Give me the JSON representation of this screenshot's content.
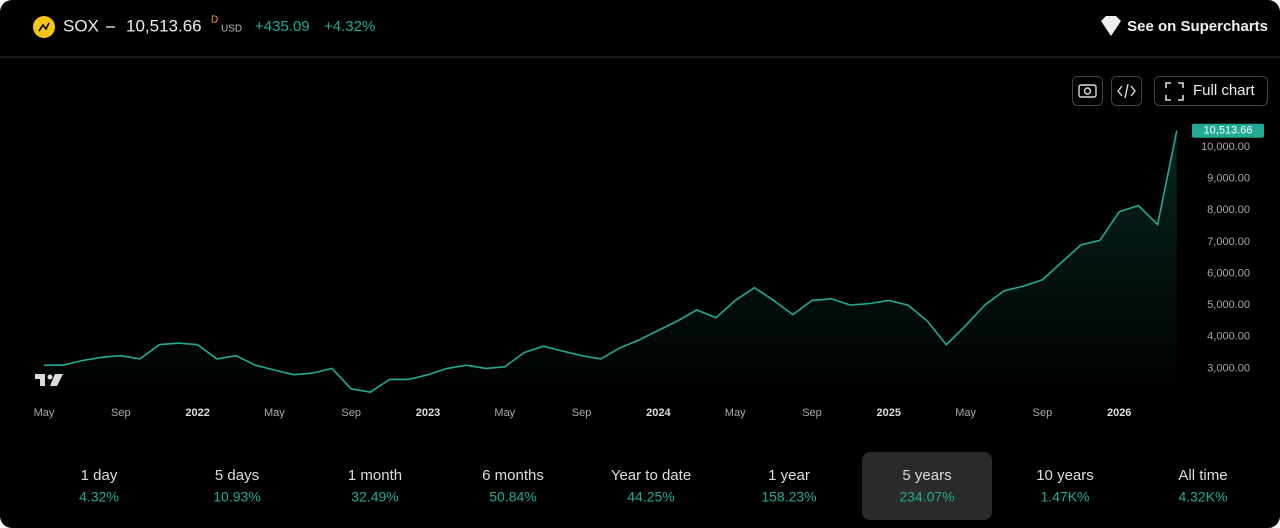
{
  "header": {
    "symbol": "SOX",
    "price": "10,513.66",
    "price_flag": "D",
    "currency": "USD",
    "change": "+435.09",
    "change_percent": "+4.32%",
    "link": "See on Supercharts"
  },
  "toolbar": {
    "full_chart": "Full chart"
  },
  "chart_data": {
    "type": "line",
    "categories": [
      "May",
      null,
      null,
      null,
      "Sep",
      null,
      null,
      null,
      "2022",
      null,
      null,
      null,
      "May",
      null,
      null,
      null,
      "Sep",
      null,
      null,
      null,
      "2023",
      null,
      null,
      null,
      "May",
      null,
      null,
      null,
      "Sep",
      null,
      null,
      null,
      "2024",
      null,
      null,
      null,
      "May",
      null,
      null,
      null,
      "Sep",
      null,
      null,
      null,
      "2025",
      null,
      null,
      null,
      "May",
      null,
      null,
      null,
      "Sep",
      null,
      null,
      null,
      "2026",
      null,
      null,
      null
    ],
    "series": [
      {
        "color": "#22ab94",
        "values": [
          3100,
          3100,
          3250,
          3350,
          3400,
          3300,
          3750,
          3800,
          3750,
          3300,
          3400,
          3100,
          2950,
          2800,
          2850,
          3000,
          2350,
          2250,
          2650,
          2650,
          2800,
          3000,
          3100,
          3000,
          3050,
          3500,
          3700,
          3550,
          3400,
          3300,
          3650,
          3900,
          4200,
          4500,
          4850,
          4600,
          5150,
          5550,
          5150,
          4700,
          5150,
          5200,
          5000,
          5050,
          5150,
          5000,
          4500,
          3750,
          4350,
          5000,
          5450,
          5600,
          5800,
          6350,
          6900,
          7050,
          7950,
          8150,
          7550,
          10513.66
        ],
        "value_labels": [
          null,
          null,
          null,
          null,
          null,
          null,
          null,
          null,
          null,
          null,
          null,
          null,
          null,
          null,
          null,
          null,
          null,
          null,
          null,
          null,
          null,
          null,
          null,
          null,
          null,
          null,
          null,
          null,
          null,
          null,
          null,
          null,
          null,
          null,
          null,
          null,
          null,
          null,
          null,
          null,
          null,
          null,
          null,
          null,
          null,
          null,
          null,
          null,
          null,
          null,
          null,
          null,
          null,
          null,
          null,
          null,
          null,
          null,
          null,
          "10,513.66"
        ]
      }
    ],
    "ylim": [
      2000,
      10600
    ],
    "yticks": [
      {
        "value": 3000,
        "label": "3,000.00"
      },
      {
        "value": 4000,
        "label": "4,000.00"
      },
      {
        "value": 5000,
        "label": "5,000.00"
      },
      {
        "value": 6000,
        "label": "6,000.00"
      },
      {
        "value": 7000,
        "label": "7,000.00"
      },
      {
        "value": 8000,
        "label": "8,000.00"
      },
      {
        "value": 9000,
        "label": "9,000.00"
      },
      {
        "value": 10000,
        "label": "10,000.00"
      }
    ],
    "grid": false
  },
  "periods": [
    {
      "label": "1 day",
      "change": "4.32%"
    },
    {
      "label": "5 days",
      "change": "10.93%"
    },
    {
      "label": "1 month",
      "change": "32.49%"
    },
    {
      "label": "6 months",
      "change": "50.84%"
    },
    {
      "label": "Year to date",
      "change": "44.25%"
    },
    {
      "label": "1 year",
      "change": "158.23%"
    },
    {
      "label": "5 years",
      "change": "234.07%",
      "active": true
    },
    {
      "label": "10 years",
      "change": "1.47K%"
    },
    {
      "label": "All time",
      "change": "4.32K%"
    }
  ]
}
